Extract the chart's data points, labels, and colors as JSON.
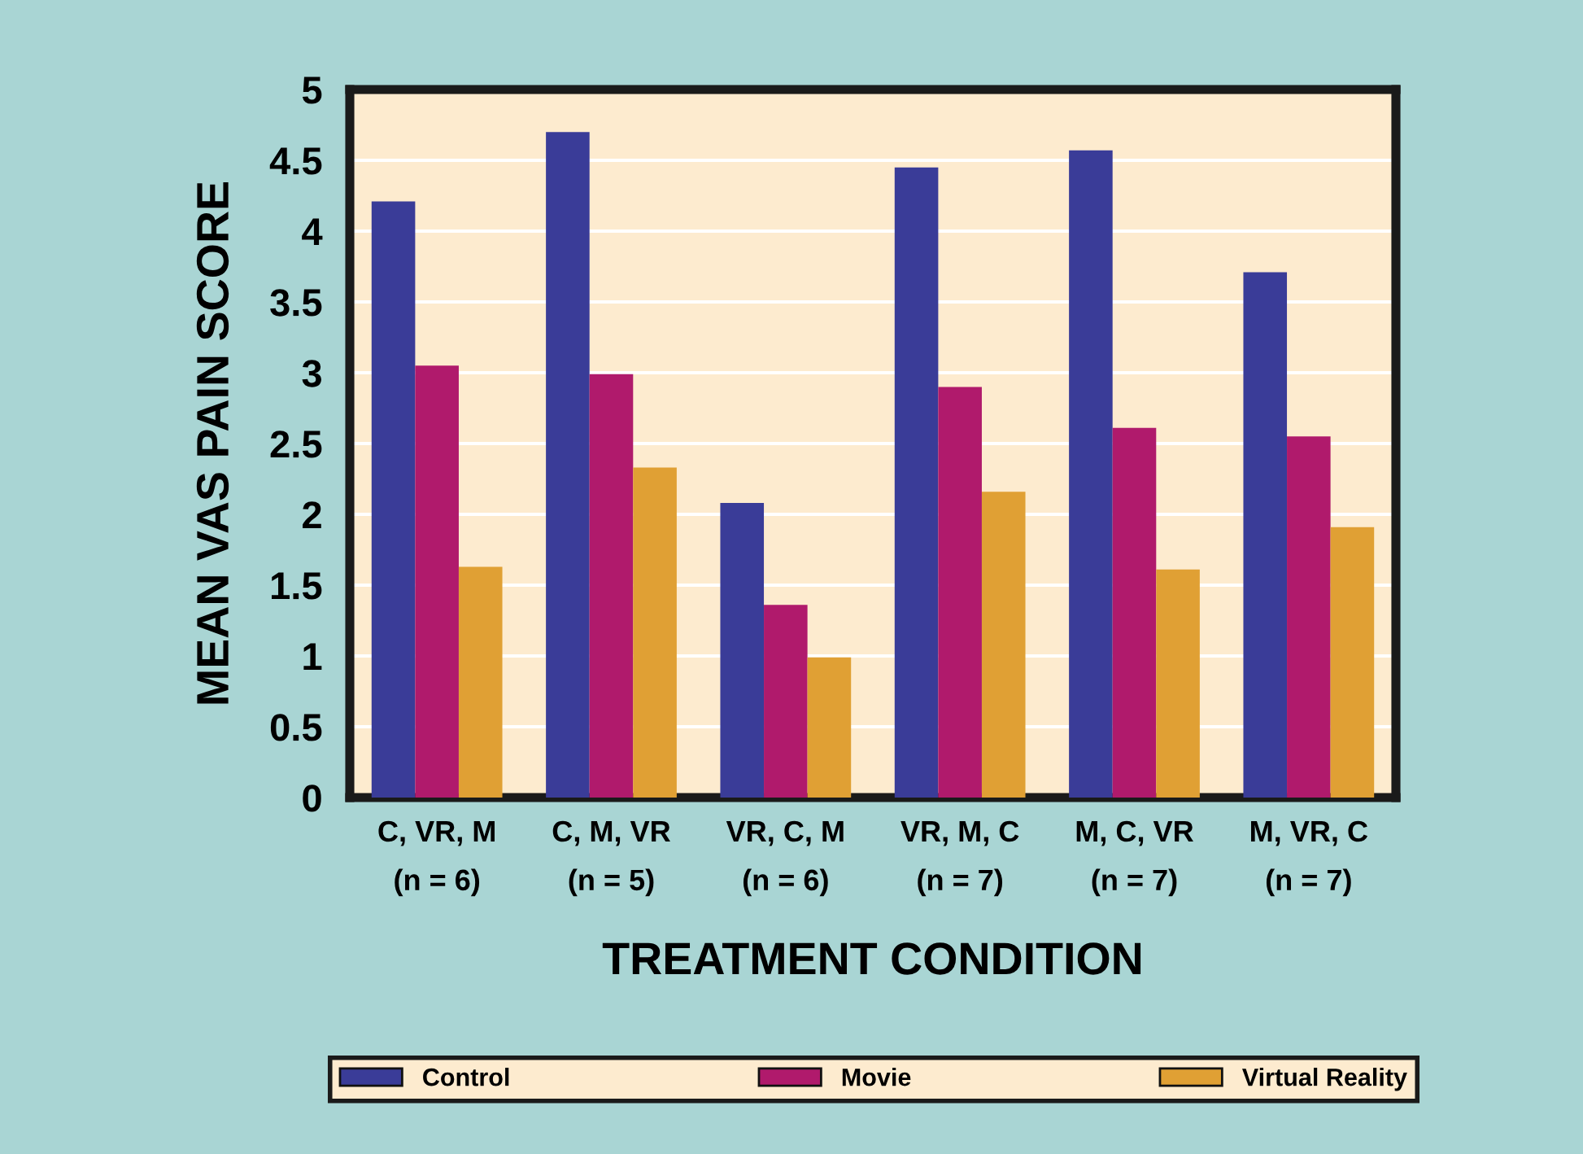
{
  "chart_data": {
    "type": "bar",
    "xlabel": "TREATMENT CONDITION",
    "ylabel": "MEAN VAS PAIN SCORE",
    "categories": [
      "C, VR, M\n(n = 6)",
      "C, M, VR\n(n = 5)",
      "VR, C, M\n(n = 6)",
      "VR, M, C\n(n = 7)",
      "M, C, VR\n(n = 7)",
      "M, VR, C\n(n = 7)"
    ],
    "series": [
      {
        "name": "Control",
        "color": "#3a3c98",
        "values": [
          4.21,
          4.7,
          2.08,
          4.45,
          4.57,
          3.71
        ]
      },
      {
        "name": "Movie",
        "color": "#b01a6c",
        "values": [
          3.05,
          2.99,
          1.36,
          2.9,
          2.61,
          2.55
        ]
      },
      {
        "name": "Virtual Reality",
        "color": "#e0a034",
        "values": [
          1.63,
          2.33,
          0.99,
          2.16,
          1.61,
          1.91
        ]
      }
    ],
    "ylim": [
      0,
      5
    ],
    "yticks": [
      0,
      0.5,
      1,
      1.5,
      2,
      2.5,
      3,
      3.5,
      4,
      4.5,
      5
    ],
    "grid": "y",
    "legend": "bottom"
  }
}
